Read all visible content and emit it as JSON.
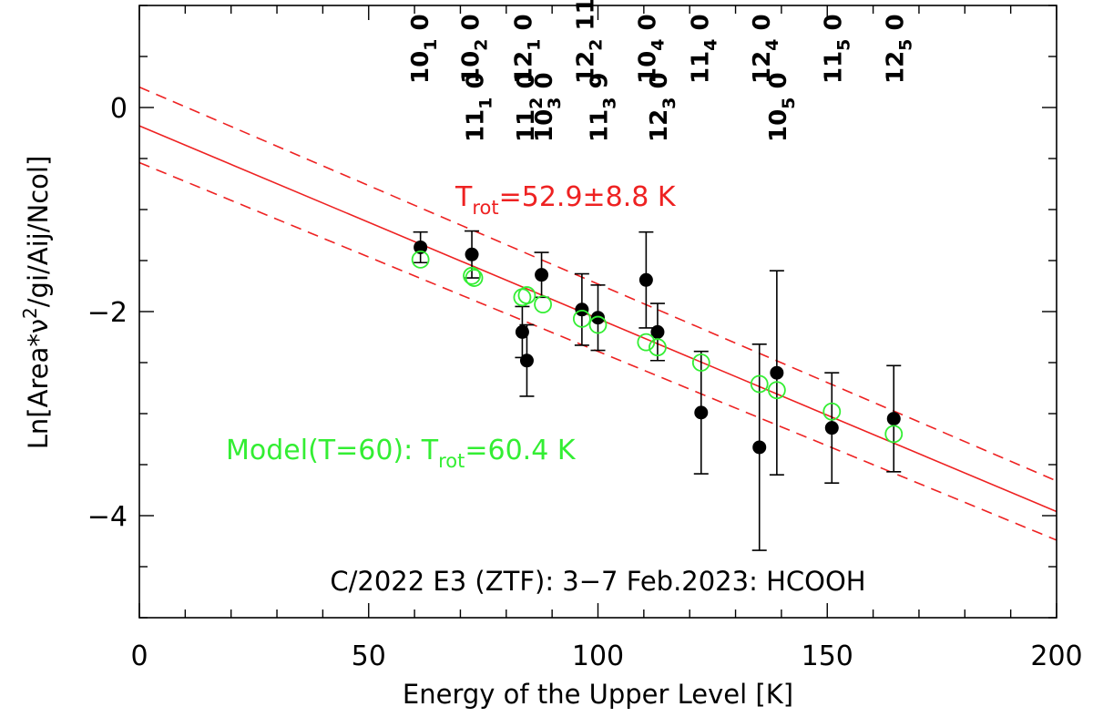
{
  "chart_data": {
    "type": "scatter",
    "title": "C/2022 E3 (ZTF): 3−7 Feb.2023: HCOOH",
    "xlabel": "Energy of the Upper Level [K]",
    "ylabel_parts": {
      "prefix": "Ln[Area*ν",
      "sup": "2",
      "suffix": "/gi/Aij/Ncol]"
    },
    "xlim": [
      0,
      200
    ],
    "ylim": [
      -5,
      1
    ],
    "xticks": [
      0,
      50,
      100,
      150,
      200
    ],
    "yticks": [
      0,
      -2,
      -4
    ],
    "grid": false,
    "series": [
      {
        "type": "observed",
        "color": "#000000",
        "points": [
          {
            "x": 61.3,
            "y": -1.37,
            "err": 0.15
          },
          {
            "x": 72.5,
            "y": -1.44,
            "err": 0.23
          },
          {
            "x": 83.5,
            "y": -2.2,
            "err": 0.25
          },
          {
            "x": 84.5,
            "y": -2.48,
            "err": 0.35
          },
          {
            "x": 87.7,
            "y": -1.64,
            "err": 0.22
          },
          {
            "x": 96.5,
            "y": -1.98,
            "err": 0.35
          },
          {
            "x": 100.0,
            "y": -2.06,
            "err": 0.32
          },
          {
            "x": 110.5,
            "y": -1.69,
            "err": 0.47
          },
          {
            "x": 113.0,
            "y": -2.2,
            "err": 0.28
          },
          {
            "x": 122.5,
            "y": -2.99,
            "err": 0.6
          },
          {
            "x": 135.2,
            "y": -3.33,
            "err": 1.01
          },
          {
            "x": 139.0,
            "y": -2.6,
            "err": 1.0
          },
          {
            "x": 151.0,
            "y": -3.14,
            "err": 0.54
          },
          {
            "x": 164.5,
            "y": -3.05,
            "err": 0.52
          }
        ]
      },
      {
        "type": "model",
        "color": "#33ee33",
        "points": [
          {
            "x": 61.3,
            "y": -1.49
          },
          {
            "x": 72.5,
            "y": -1.65
          },
          {
            "x": 73.0,
            "y": -1.67
          },
          {
            "x": 83.5,
            "y": -1.86
          },
          {
            "x": 84.5,
            "y": -1.84
          },
          {
            "x": 88.0,
            "y": -1.93
          },
          {
            "x": 96.5,
            "y": -2.07
          },
          {
            "x": 100.0,
            "y": -2.13
          },
          {
            "x": 110.5,
            "y": -2.3
          },
          {
            "x": 113.0,
            "y": -2.35
          },
          {
            "x": 122.5,
            "y": -2.5
          },
          {
            "x": 135.2,
            "y": -2.71
          },
          {
            "x": 139.0,
            "y": -2.77
          },
          {
            "x": 151.0,
            "y": -2.98
          },
          {
            "x": 164.5,
            "y": -3.2
          }
        ]
      }
    ],
    "fit_line": {
      "color": "#ee2222",
      "x": [
        0,
        200
      ],
      "y": [
        -0.18,
        -3.96
      ]
    },
    "fit_bounds": [
      {
        "x": [
          0,
          200
        ],
        "y": [
          0.2,
          -3.66
        ]
      },
      {
        "x": [
          0,
          200
        ],
        "y": [
          -0.54,
          -4.24
        ]
      }
    ],
    "annotations": {
      "fit": {
        "prefix": "T",
        "sub": "rot",
        "suffix": "=52.9±8.8 K",
        "color": "#ee2222"
      },
      "model": {
        "prefix": "Model(T=60): T",
        "sub": "rot",
        "suffix": "=60.4 K",
        "color": "#33ee33"
      }
    },
    "transition_labels": [
      {
        "x": 61.0,
        "row": "upper",
        "main": "10",
        "sub": "1",
        "tail": "0"
      },
      {
        "x": 72.0,
        "row": "upper",
        "main": "10",
        "sub": "2",
        "tail": "0"
      },
      {
        "x": 83.5,
        "row": "upper",
        "main": "12",
        "sub": "1",
        "tail": "0"
      },
      {
        "x": 97.0,
        "row": "upper",
        "main": "12",
        "sub": "2",
        "tail": "11"
      },
      {
        "x": 110.5,
        "row": "upper",
        "main": "10",
        "sub": "4",
        "tail": "0"
      },
      {
        "x": 122.0,
        "row": "upper",
        "main": "11",
        "sub": "4",
        "tail": "0"
      },
      {
        "x": 135.5,
        "row": "upper",
        "main": "12",
        "sub": "4",
        "tail": "0"
      },
      {
        "x": 151.0,
        "row": "upper",
        "main": "11",
        "sub": "5",
        "tail": "0"
      },
      {
        "x": 164.5,
        "row": "upper",
        "main": "12",
        "sub": "5",
        "tail": "0"
      },
      {
        "x": 73.0,
        "row": "lower",
        "main": "11",
        "sub": "1",
        "tail": "0"
      },
      {
        "x": 84.0,
        "row": "lower",
        "main": "11",
        "sub": "2",
        "tail": "0"
      },
      {
        "x": 88.0,
        "row": "lower",
        "main": "10",
        "sub": "3",
        "tail": "0"
      },
      {
        "x": 100.0,
        "row": "lower",
        "main": "11",
        "sub": "3",
        "tail": "9"
      },
      {
        "x": 113.0,
        "row": "lower",
        "main": "12",
        "sub": "3",
        "tail": "0"
      },
      {
        "x": 139.0,
        "row": "lower",
        "main": "10",
        "sub": "5",
        "tail": "0"
      }
    ]
  }
}
